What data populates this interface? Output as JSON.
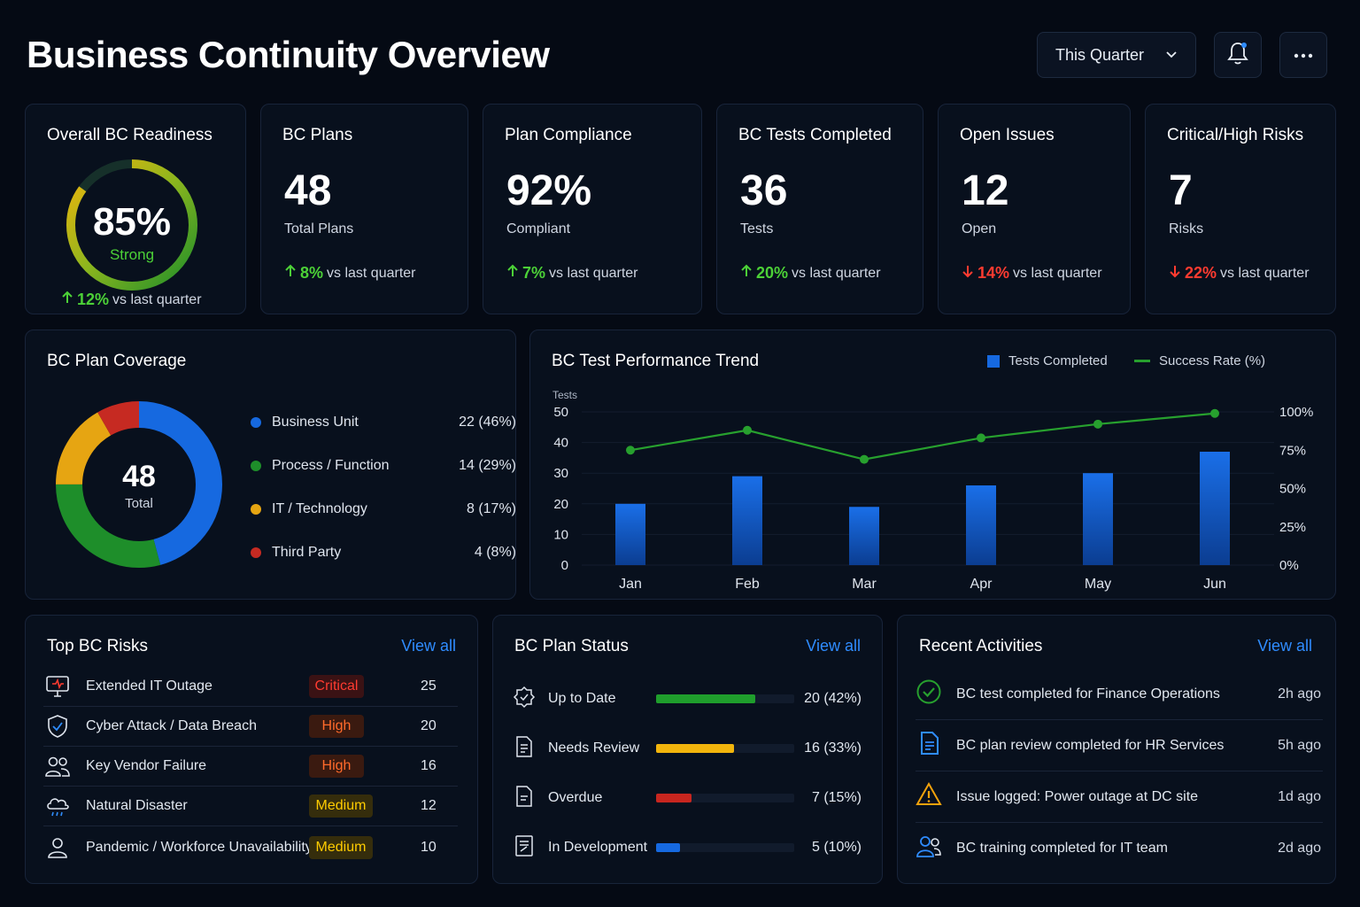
{
  "page": {
    "title": "Business Continuity Overview"
  },
  "header": {
    "period_label": "This Quarter"
  },
  "kpis": {
    "readiness": {
      "title": "Overall BC Readiness",
      "value": "85%",
      "status": "Strong",
      "delta": "12%",
      "delta_text": "vs last quarter",
      "percent": 85
    },
    "plans": {
      "title": "BC Plans",
      "value": "48",
      "sub": "Total Plans",
      "delta": "8%",
      "delta_text": "vs last quarter"
    },
    "compliance": {
      "title": "Plan Compliance",
      "value": "92%",
      "sub": "Compliant",
      "delta": "7%",
      "delta_text": "vs last quarter"
    },
    "tests": {
      "title": "BC Tests Completed",
      "value": "36",
      "sub": "Tests",
      "delta": "20%",
      "delta_text": "vs last quarter"
    },
    "issues": {
      "title": "Open Issues",
      "value": "12",
      "sub": "Open",
      "delta": "14%",
      "delta_text": "vs last quarter"
    },
    "risks": {
      "title": "Critical/High Risks",
      "value": "7",
      "sub": "Risks",
      "delta": "22%",
      "delta_text": "vs last quarter"
    }
  },
  "coverage": {
    "title": "BC Plan Coverage",
    "total_value": "48",
    "total_label": "Total",
    "items": [
      {
        "label": "Business Unit",
        "value": "22 (46%)",
        "count": 22,
        "color": "#1669e0"
      },
      {
        "label": "Process / Function",
        "value": "14 (29%)",
        "count": 14,
        "color": "#1e8e2a"
      },
      {
        "label": "IT / Technology",
        "value": "8 (17%)",
        "count": 8,
        "color": "#e6a512"
      },
      {
        "label": "Third Party",
        "value": "4 (8%)",
        "count": 4,
        "color": "#c62a22"
      }
    ]
  },
  "chart_data": {
    "type": "bar",
    "title": "BC Test Performance Trend",
    "ylabel": "Tests",
    "categories": [
      "Jan",
      "Feb",
      "Mar",
      "Apr",
      "May",
      "Jun"
    ],
    "series": [
      {
        "name": "Tests Completed",
        "type": "bar",
        "axis": "left",
        "values": [
          20,
          29,
          19,
          26,
          30,
          37
        ],
        "color": "#1669e0"
      },
      {
        "name": "Success Rate (%)",
        "type": "line",
        "axis": "right",
        "values": [
          75,
          88,
          69,
          83,
          92,
          99
        ],
        "color": "#27a02e"
      }
    ],
    "ylim": [
      0,
      50
    ],
    "yticks": [
      "0",
      "10",
      "20",
      "30",
      "40",
      "50"
    ],
    "y2lim": [
      0,
      100
    ],
    "y2ticks": [
      "0%",
      "25%",
      "50%",
      "75%",
      "100%"
    ],
    "legend": "top-right",
    "grid": true
  },
  "top_risks": {
    "title": "Top BC Risks",
    "view_all": "View all",
    "items": [
      {
        "name": "Extended IT Outage",
        "severity": "Critical",
        "score": "25",
        "icon": "monitor-alert-icon"
      },
      {
        "name": "Cyber Attack / Data Breach",
        "severity": "High",
        "score": "20",
        "icon": "shield-icon"
      },
      {
        "name": "Key Vendor Failure",
        "severity": "High",
        "score": "16",
        "icon": "users-icon"
      },
      {
        "name": "Natural Disaster",
        "severity": "Medium",
        "score": "12",
        "icon": "cloud-icon"
      },
      {
        "name": "Pandemic / Workforce Unavailability",
        "severity": "Medium",
        "score": "10",
        "icon": "user-icon"
      }
    ]
  },
  "plan_status": {
    "title": "BC Plan Status",
    "view_all": "View all",
    "items": [
      {
        "label": "Up to Date",
        "value": "20 (42%)",
        "fraction": 0.42,
        "color": "#1f9e2c"
      },
      {
        "label": "Needs Review",
        "value": "16 (33%)",
        "fraction": 0.33,
        "color": "#f2b50c"
      },
      {
        "label": "Overdue",
        "value": "7 (15%)",
        "fraction": 0.15,
        "color": "#c8261f"
      },
      {
        "label": "In Development",
        "value": "5 (10%)",
        "fraction": 0.1,
        "color": "#1669e0"
      }
    ]
  },
  "activities": {
    "title": "Recent Activities",
    "view_all": "View all",
    "items": [
      {
        "text": "BC test completed for Finance Operations",
        "time": "2h ago",
        "icon": "check-circle-icon"
      },
      {
        "text": "BC plan review completed for HR Services",
        "time": "5h ago",
        "icon": "document-icon"
      },
      {
        "text": "Issue logged: Power outage at DC site",
        "time": "1d ago",
        "icon": "warning-icon"
      },
      {
        "text": "BC training completed for IT team",
        "time": "2d ago",
        "icon": "team-icon"
      }
    ]
  }
}
